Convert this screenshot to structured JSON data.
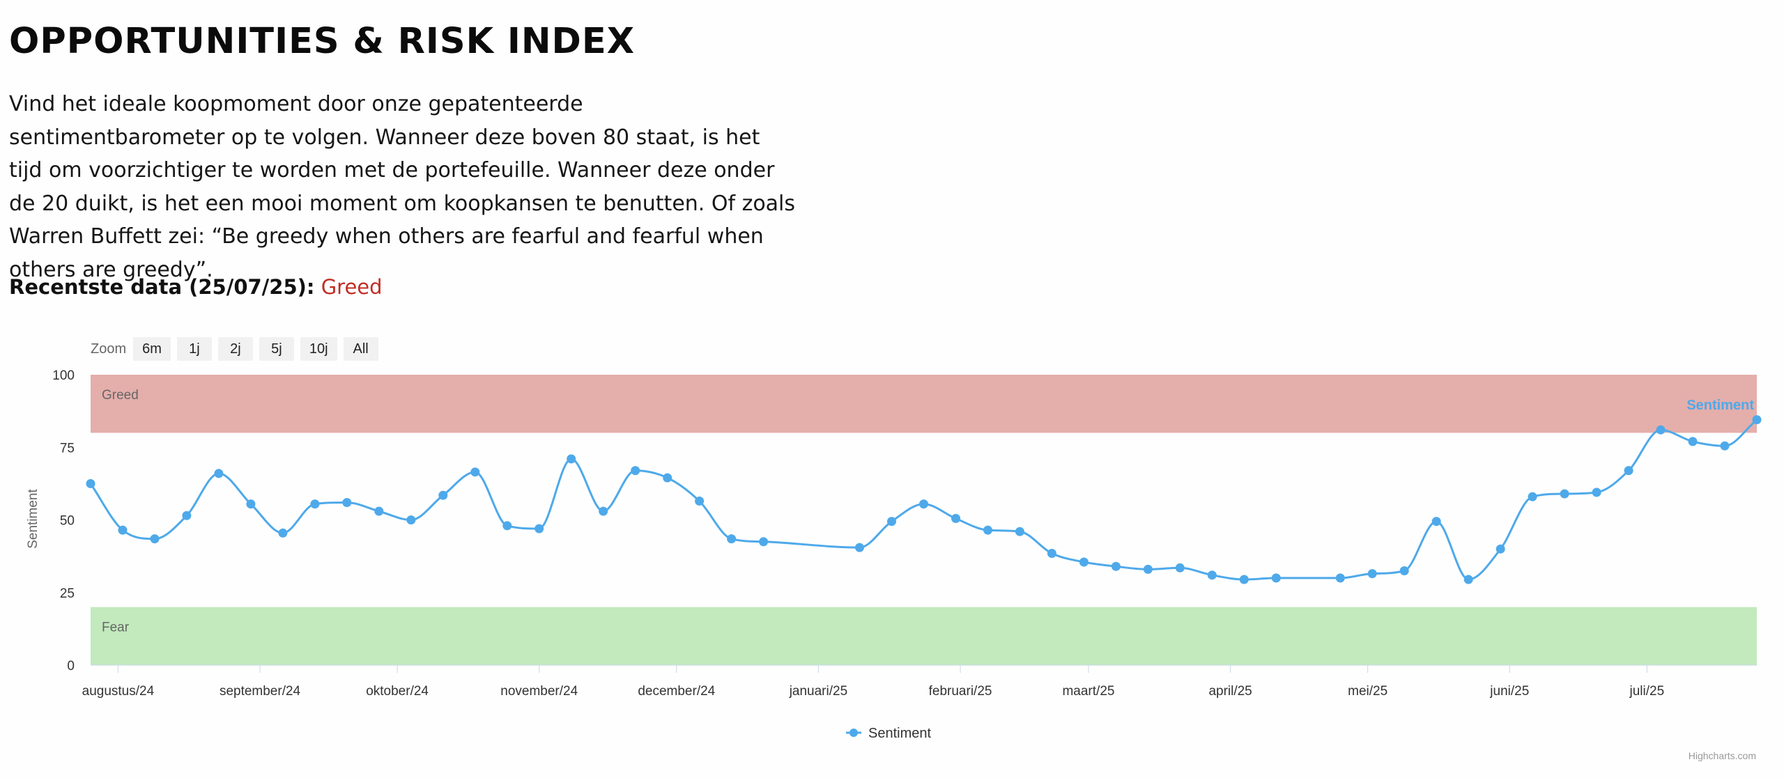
{
  "page": {
    "title": "OPPORTUNITIES & RISK INDEX",
    "intro": "Vind het ideale koopmoment door onze gepatenteerde sentimentbarometer op te volgen. Wanneer deze boven 80 staat, is het tijd om voorzichtiger te worden met de portefeuille. Wanneer deze onder de 20 duikt, is het een mooi moment om koopkansen te benutten. Of zoals Warren Buffett zei: “Be greedy when others are fearful and fearful when others are greedy”.",
    "latest_label": "Recentste data (25/07/25):",
    "latest_value": "Greed",
    "latest_value_color": "#c22d26"
  },
  "zoom": {
    "label": "Zoom",
    "buttons": [
      "6m",
      "1j",
      "2j",
      "5j",
      "10j",
      "All"
    ]
  },
  "credits": "Highcharts.com",
  "chart_data": {
    "type": "line",
    "xlabel": "",
    "ylabel": "Sentiment",
    "ylim": [
      0,
      100
    ],
    "yticks": [
      "0",
      "25",
      "50",
      "75",
      "100"
    ],
    "grid": false,
    "legend_position": "bottom-center",
    "series_label_position": "top-right",
    "x_tick_labels": [
      {
        "date": "2024-08-01",
        "label": "augustus/24"
      },
      {
        "date": "2024-09-01",
        "label": "september/24"
      },
      {
        "date": "2024-10-01",
        "label": "oktober/24"
      },
      {
        "date": "2024-11-01",
        "label": "november/24"
      },
      {
        "date": "2024-12-01",
        "label": "december/24"
      },
      {
        "date": "2025-01-01",
        "label": "januari/25"
      },
      {
        "date": "2025-02-01",
        "label": "februari/25"
      },
      {
        "date": "2025-03-01",
        "label": "maart/25"
      },
      {
        "date": "2025-04-01",
        "label": "april/25"
      },
      {
        "date": "2025-05-01",
        "label": "mei/25"
      },
      {
        "date": "2025-06-01",
        "label": "juni/25"
      },
      {
        "date": "2025-07-01",
        "label": "juli/25"
      }
    ],
    "bands": [
      {
        "label": "Greed",
        "from": 80,
        "to": 100,
        "color": "#e4aeab"
      },
      {
        "label": "Fear",
        "from": 0,
        "to": 20,
        "color": "#c2eabd"
      }
    ],
    "series": [
      {
        "name": "Sentiment",
        "color": "#4ea9ea",
        "x": [
          "2024-07-26",
          "2024-08-02",
          "2024-08-09",
          "2024-08-16",
          "2024-08-23",
          "2024-08-30",
          "2024-09-06",
          "2024-09-13",
          "2024-09-20",
          "2024-09-27",
          "2024-10-04",
          "2024-10-11",
          "2024-10-18",
          "2024-10-25",
          "2024-11-01",
          "2024-11-08",
          "2024-11-15",
          "2024-11-22",
          "2024-11-29",
          "2024-12-06",
          "2024-12-13",
          "2024-12-20",
          "2025-01-10",
          "2025-01-17",
          "2025-01-24",
          "2025-01-31",
          "2025-02-07",
          "2025-02-14",
          "2025-02-21",
          "2025-02-28",
          "2025-03-07",
          "2025-03-14",
          "2025-03-21",
          "2025-03-28",
          "2025-04-04",
          "2025-04-11",
          "2025-04-25",
          "2025-05-02",
          "2025-05-09",
          "2025-05-16",
          "2025-05-23",
          "2025-05-30",
          "2025-06-06",
          "2025-06-13",
          "2025-06-20",
          "2025-06-27",
          "2025-07-04",
          "2025-07-11",
          "2025-07-18",
          "2025-07-25"
        ],
        "values": [
          62.5,
          46.5,
          43.5,
          51.5,
          66,
          55.5,
          45.5,
          55.5,
          56,
          53,
          50,
          58.5,
          66.5,
          48,
          47,
          71,
          53,
          67,
          64.5,
          56.5,
          43.5,
          42.5,
          40.5,
          49.5,
          55.5,
          50.5,
          46.5,
          46,
          38.5,
          35.5,
          34,
          33,
          33.5,
          31,
          29.5,
          30,
          30,
          31.5,
          32.5,
          49.5,
          29.5,
          40,
          58,
          59,
          59.5,
          67,
          81,
          77,
          75.5,
          84.5
        ]
      }
    ]
  }
}
